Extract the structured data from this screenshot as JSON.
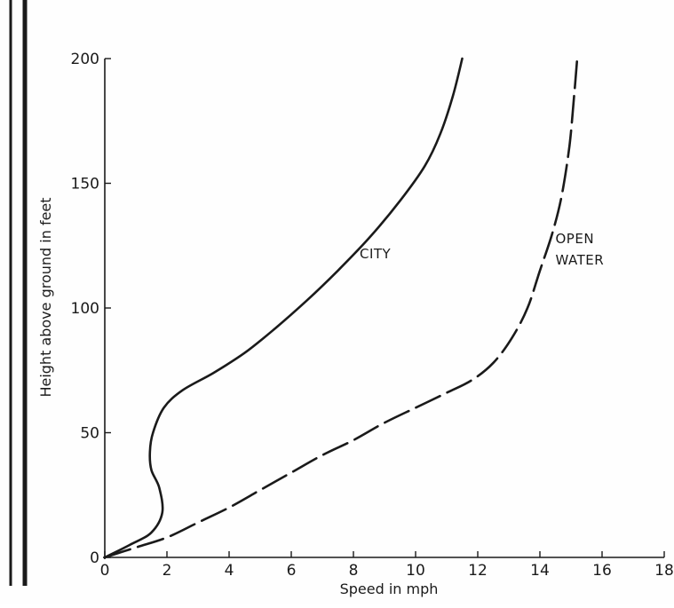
{
  "chart_data": {
    "type": "line",
    "title": "",
    "xlabel": "Speed in mph",
    "ylabel": "Height above ground in feet",
    "xlim": [
      0,
      18
    ],
    "ylim": [
      0,
      200
    ],
    "x_ticks": [
      0,
      2,
      4,
      6,
      8,
      10,
      12,
      14,
      16,
      18
    ],
    "y_ticks": [
      0,
      50,
      100,
      150,
      200
    ],
    "grid": false,
    "legend": "none",
    "line_color": "#1a1a1a",
    "series": [
      {
        "name": "CITY",
        "style": "solid",
        "points": [
          [
            0,
            0
          ],
          [
            0.8,
            5
          ],
          [
            1.5,
            10
          ],
          [
            1.85,
            18
          ],
          [
            1.75,
            28
          ],
          [
            1.5,
            35
          ],
          [
            1.45,
            42
          ],
          [
            1.55,
            50
          ],
          [
            1.9,
            60
          ],
          [
            2.5,
            67
          ],
          [
            3.5,
            74
          ],
          [
            4.5,
            82
          ],
          [
            5.5,
            92
          ],
          [
            6.5,
            103
          ],
          [
            7.5,
            115
          ],
          [
            8.5,
            128
          ],
          [
            9.5,
            143
          ],
          [
            10.3,
            157
          ],
          [
            10.8,
            170
          ],
          [
            11.2,
            185
          ],
          [
            11.5,
            200
          ]
        ]
      },
      {
        "name": "OPEN WATER",
        "style": "dashed",
        "points": [
          [
            0,
            0
          ],
          [
            1,
            4
          ],
          [
            2,
            8
          ],
          [
            3,
            14
          ],
          [
            4,
            20
          ],
          [
            5,
            27
          ],
          [
            6,
            34
          ],
          [
            7,
            41
          ],
          [
            8,
            47
          ],
          [
            9,
            54
          ],
          [
            10,
            60
          ],
          [
            11,
            66
          ],
          [
            11.8,
            71
          ],
          [
            12.5,
            78
          ],
          [
            13.1,
            88
          ],
          [
            13.6,
            100
          ],
          [
            14,
            115
          ],
          [
            14.4,
            130
          ],
          [
            14.7,
            145
          ],
          [
            14.95,
            165
          ],
          [
            15.1,
            185
          ],
          [
            15.2,
            200
          ]
        ]
      }
    ],
    "annotations": [
      {
        "series": "CITY",
        "lines": [
          "CITY"
        ],
        "at": [
          8.2,
          120
        ]
      },
      {
        "series": "OPEN WATER",
        "lines": [
          "OPEN",
          "WATER"
        ],
        "at": [
          14.5,
          126
        ]
      }
    ]
  }
}
